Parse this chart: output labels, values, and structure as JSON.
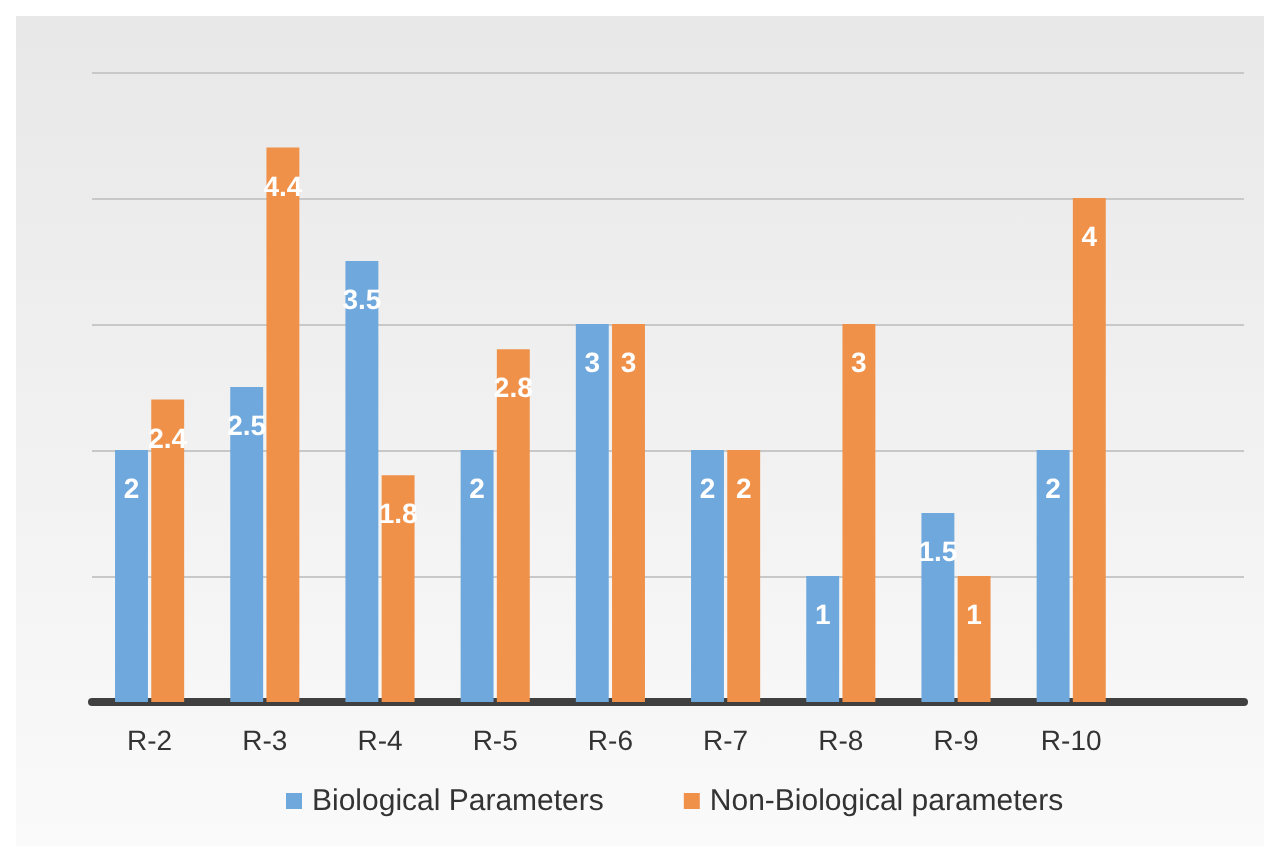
{
  "chart_data": {
    "type": "bar",
    "categories": [
      "R-2",
      "R-3",
      "R-4",
      "R-5",
      "R-6",
      "R-7",
      "R-8",
      "R-9",
      "R-10",
      null
    ],
    "series": [
      {
        "name": "Biological Parameters",
        "color": "#6fa8dc",
        "values": [
          2,
          2.5,
          3.5,
          2,
          3,
          2,
          1,
          1.5,
          2,
          null
        ]
      },
      {
        "name": "Non-Biological parameters",
        "color": "#f0914a",
        "values": [
          2.4,
          4.4,
          1.8,
          2.8,
          3,
          2,
          3,
          1,
          4,
          null
        ]
      }
    ],
    "data_labels": true,
    "grid": "y",
    "legend": "bottom"
  }
}
